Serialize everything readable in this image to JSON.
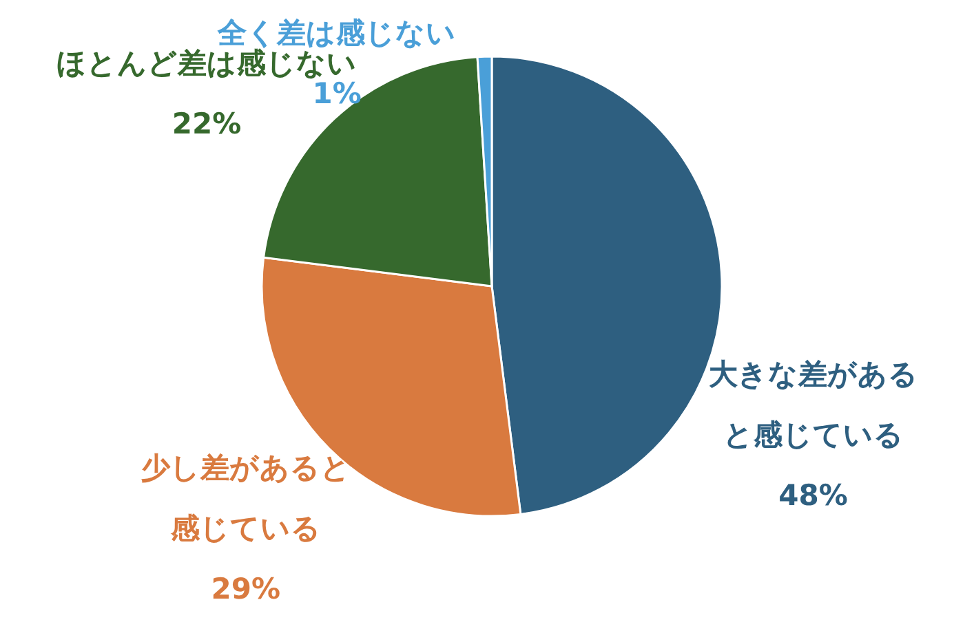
{
  "chart_data": {
    "type": "pie",
    "categories": [
      "大きな差があると感じている",
      "少し差があると感じている",
      "ほとんど差は感じない",
      "全く差は感じない"
    ],
    "values": [
      48,
      29,
      22,
      1
    ],
    "colors": [
      "#2e5f80",
      "#d97a3f",
      "#36692d",
      "#4a9fd8"
    ],
    "value_labels": [
      "48%",
      "29%",
      "22%",
      "1%"
    ]
  }
}
